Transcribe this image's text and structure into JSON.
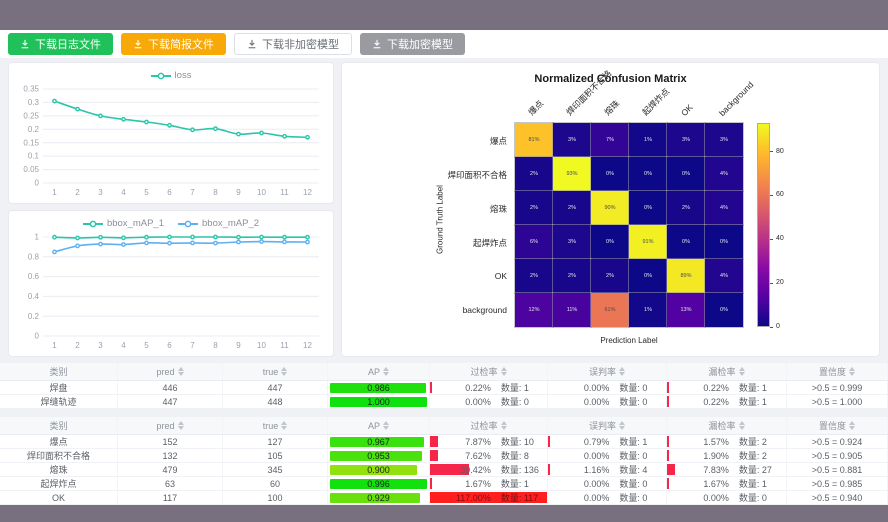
{
  "toolbar": {
    "buttons": [
      {
        "label": "下载日志文件",
        "style": "green"
      },
      {
        "label": "下载简报文件",
        "style": "orange"
      },
      {
        "label": "下载非加密模型",
        "style": "plain"
      },
      {
        "label": "下载加密模型",
        "style": "gray"
      }
    ]
  },
  "chart_data": [
    {
      "type": "line",
      "title": "",
      "x": [
        1,
        2,
        3,
        4,
        5,
        6,
        7,
        8,
        9,
        10,
        11,
        12
      ],
      "series": [
        {
          "name": "loss",
          "color": "#2cc5a9",
          "values": [
            0.305,
            0.275,
            0.25,
            0.237,
            0.227,
            0.215,
            0.198,
            0.202,
            0.182,
            0.186,
            0.174,
            0.17
          ]
        }
      ],
      "ylim": [
        0,
        0.35
      ],
      "yticks": [
        0,
        0.05,
        0.1,
        0.15,
        0.2,
        0.25,
        0.3,
        0.35
      ],
      "grid": true,
      "legend_position": "top"
    },
    {
      "type": "line",
      "title": "",
      "x": [
        1,
        2,
        3,
        4,
        5,
        6,
        7,
        8,
        9,
        10,
        11,
        12
      ],
      "series": [
        {
          "name": "bbox_mAP_1",
          "color": "#2cc5a9",
          "values": [
            0.998,
            0.99,
            0.997,
            0.992,
            0.998,
            1.0,
            1.0,
            1.0,
            0.998,
            0.999,
            0.998,
            0.998
          ]
        },
        {
          "name": "bbox_mAP_2",
          "color": "#5fb0f0",
          "values": [
            0.85,
            0.91,
            0.928,
            0.924,
            0.94,
            0.937,
            0.94,
            0.938,
            0.95,
            0.954,
            0.951,
            0.95
          ]
        }
      ],
      "ylim": [
        0,
        1
      ],
      "yticks": [
        0,
        0.2,
        0.4,
        0.6,
        0.8,
        1
      ],
      "grid": true,
      "legend_position": "top"
    },
    {
      "type": "heatmap",
      "title": "Normalized Confusion Matrix",
      "xlabel": "Prediction Label",
      "ylabel": "Ground Truth Label",
      "labels": [
        "爆点",
        "焊印面积不合格",
        "熔珠",
        "起焊炸点",
        "OK",
        "background"
      ],
      "matrix_pct": [
        [
          81,
          3,
          7,
          1,
          3,
          3
        ],
        [
          2,
          93,
          0,
          0,
          0,
          4
        ],
        [
          2,
          2,
          90,
          0,
          2,
          4
        ],
        [
          6,
          3,
          0,
          91,
          0,
          0
        ],
        [
          2,
          2,
          2,
          0,
          89,
          4
        ],
        [
          12,
          11,
          61,
          1,
          13,
          0
        ]
      ],
      "vmin": 0,
      "vmax": 93,
      "colorbar_ticks": [
        0,
        20,
        40,
        60,
        80
      ],
      "colormap": "plasma"
    }
  ],
  "tables": [
    {
      "headers": [
        "类别",
        "pred",
        "true",
        "AP",
        "过检率",
        "误判率",
        "漏检率",
        "置信度"
      ],
      "rows": [
        {
          "name": "焊盘",
          "pred": "446",
          "true": "447",
          "ap": "0.986",
          "ap_value": 0.986,
          "over": {
            "pct": "0.22%",
            "value": 0.22,
            "count": "数量: 1"
          },
          "mis": {
            "pct": "0.00%",
            "value": 0,
            "count": "数量: 0"
          },
          "miss": {
            "pct": "0.22%",
            "value": 0.22,
            "count": "数量: 1"
          },
          "conf": ">0.5 = 0.999"
        },
        {
          "name": "焊缝轨迹",
          "pred": "447",
          "true": "448",
          "ap": "1.000",
          "ap_value": 1.0,
          "over": {
            "pct": "0.00%",
            "value": 0,
            "count": "数量: 0"
          },
          "mis": {
            "pct": "0.00%",
            "value": 0,
            "count": "数量: 0"
          },
          "miss": {
            "pct": "0.22%",
            "value": 0.22,
            "count": "数量: 1"
          },
          "conf": ">0.5 = 1.000"
        }
      ]
    },
    {
      "headers": [
        "类别",
        "pred",
        "true",
        "AP",
        "过检率",
        "误判率",
        "漏检率",
        "置信度"
      ],
      "rows": [
        {
          "name": "爆点",
          "pred": "152",
          "true": "127",
          "ap": "0.967",
          "ap_value": 0.967,
          "over": {
            "pct": "7.87%",
            "value": 7.87,
            "count": "数量: 10"
          },
          "mis": {
            "pct": "0.79%",
            "value": 0.79,
            "count": "数量: 1"
          },
          "miss": {
            "pct": "1.57%",
            "value": 1.57,
            "count": "数量: 2"
          },
          "conf": ">0.5 = 0.924"
        },
        {
          "name": "焊印面积不合格",
          "pred": "132",
          "true": "105",
          "ap": "0.953",
          "ap_value": 0.953,
          "over": {
            "pct": "7.62%",
            "value": 7.62,
            "count": "数量: 8"
          },
          "mis": {
            "pct": "0.00%",
            "value": 0,
            "count": "数量: 0"
          },
          "miss": {
            "pct": "1.90%",
            "value": 1.9,
            "count": "数量: 2"
          },
          "conf": ">0.5 = 0.905"
        },
        {
          "name": "熔珠",
          "pred": "479",
          "true": "345",
          "ap": "0.900",
          "ap_value": 0.9,
          "over": {
            "pct": "39.42%",
            "value": 39.42,
            "count": "数量: 136"
          },
          "mis": {
            "pct": "1.16%",
            "value": 1.16,
            "count": "数量: 4"
          },
          "miss": {
            "pct": "7.83%",
            "value": 7.83,
            "count": "数量: 27"
          },
          "conf": ">0.5 = 0.881"
        },
        {
          "name": "起焊炸点",
          "pred": "63",
          "true": "60",
          "ap": "0.996",
          "ap_value": 0.996,
          "over": {
            "pct": "1.67%",
            "value": 1.67,
            "count": "数量: 1"
          },
          "mis": {
            "pct": "0.00%",
            "value": 0,
            "count": "数量: 0"
          },
          "miss": {
            "pct": "1.67%",
            "value": 1.67,
            "count": "数量: 1"
          },
          "conf": ">0.5 = 0.985"
        },
        {
          "name": "OK",
          "pred": "117",
          "true": "100",
          "ap": "0.929",
          "ap_value": 0.929,
          "over": {
            "pct": "117.00%",
            "value": 117,
            "count": "数量: 117"
          },
          "mis": {
            "pct": "0.00%",
            "value": 0,
            "count": "数量: 0"
          },
          "miss": {
            "pct": "0.00%",
            "value": 0,
            "count": "数量: 0"
          },
          "conf": ">0.5 = 0.940"
        }
      ]
    }
  ],
  "colors": {
    "accent_teal": "#2cc5a9",
    "accent_blue": "#5fb0f0",
    "button_green": "#20c15a",
    "button_orange": "#f8a807",
    "button_gray": "#9a9aa1",
    "bar_red": "#f5264a",
    "bar_red_full": "#ff1f1f",
    "frame": "#78707f",
    "page_bg": "#f0f1f5"
  }
}
